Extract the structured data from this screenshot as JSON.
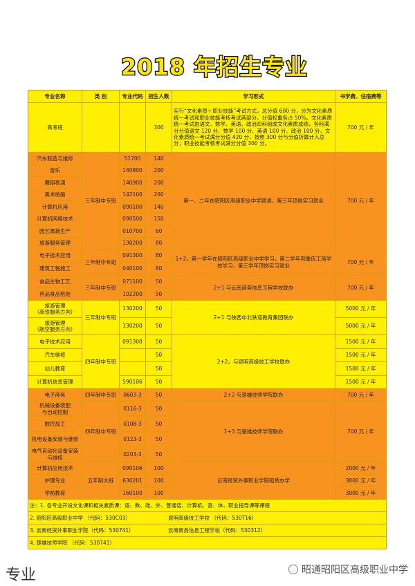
{
  "title": "2018 年招生专业",
  "table": {
    "header": [
      "专业名称",
      "类 别",
      "专业代码",
      "招生人数",
      "学习形式",
      "书学费、住宿费等"
    ],
    "groups": [
      {
        "form": "实行“文化素质＋职业技能”考试方式，总分值 600 分，分为文化素质统一考试和职业技能考核考试两部分，分值权重各占 50%。文化素质统一考试由语文、数学、英语、政治四科组成文化素质成绩，各科满分分值语文 120 分、数学 100 分、英语 100 分、政治 100 分，文化素质统一考试满分分值 420 分，按照 300 分与分值折算计入总分；职业技能考核考试满分分值 300 分。",
        "fee": "700 元 / 年",
        "rows": [
          {
            "name": "高考班",
            "count": 300
          }
        ]
      },
      {
        "category": "三年制中专班",
        "form": "第一、二年在昭阳区高级职业中学就读，第三年顶岗实习就业",
        "fee": "700 元 / 年",
        "rows": [
          {
            "name": "汽车制造与维修",
            "code": "51700",
            "count": 140
          },
          {
            "name": "音乐",
            "code": "140800",
            "count": 200
          },
          {
            "name": "舞蹈表演",
            "code": "140900",
            "count": 200
          },
          {
            "name": "美术绘画",
            "code": "142100",
            "count": 200
          },
          {
            "name": "计算机应用",
            "code": "090100",
            "count": 140
          },
          {
            "name": "计算机网络技术",
            "code": "090500",
            "count": 150
          },
          {
            "name": "园艺果蔬生产",
            "code": "010700",
            "count": 60
          },
          {
            "name": "旅游服务管理",
            "code": "130200",
            "count": 80
          }
        ]
      },
      {
        "category": "三年制中专班",
        "form": "1+2，第一学年在昭阳区高级职业中学学习，第二学年到重庆工商学校学习，第三学年顶岗实习就业",
        "fee": "700 元 / 年",
        "rows": [
          {
            "name": "电子技术应用",
            "code": "091300",
            "count": 80
          },
          {
            "name": "建筑工程施工",
            "code": "040100",
            "count": 80
          }
        ]
      },
      {
        "category": "三年制中专班",
        "form": "2+1 与云南商务信息工程学校联办",
        "fee": "700 元 / 年",
        "rows": [
          {
            "name": "食品生物工艺",
            "code": "071100",
            "count": 50
          },
          {
            "name": "药品食品检验",
            "code": "102200",
            "count": 50
          }
        ]
      },
      {
        "category": "三年制中专班",
        "form": "2+1 与陕西中北铁道教育集团联办",
        "rows": [
          {
            "name": "旅游管理\n（高铁服务方向）",
            "code": "130200",
            "count": 50,
            "fee": "5000 元 / 年"
          },
          {
            "name": "旅游管理\n（航空服务方向）",
            "code": "130200",
            "count": 50,
            "fee": "5000 元 / 年"
          }
        ]
      },
      {
        "category": "四年制中专班",
        "form": "2+2，与昆明高级技工学校联办",
        "rows": [
          {
            "name": "电子技术应用",
            "code": "091300",
            "count": 50,
            "fee": "1500 元 / 年"
          },
          {
            "name": "汽车维修",
            "count": 50,
            "fee": "1500 元 / 年"
          },
          {
            "name": "幼儿教育",
            "count": 50,
            "fee": "1500 元 / 年"
          },
          {
            "name": "计算机信息管理",
            "code": "590106",
            "count": 50,
            "fee": "1500 元 / 年"
          }
        ]
      },
      {
        "category": "四年制中专班",
        "form": "2+2 与楚雄技师学院联办",
        "fee": "700 元 / 年",
        "rows": [
          {
            "name": "电子商务",
            "code": "0603-3",
            "count": 50
          }
        ]
      },
      {
        "category": "四年制中专班",
        "form": "1+3 与楚雄技师学院联办",
        "fee": "700 元 / 年",
        "rows": [
          {
            "name": "机械设备装配\n与自动控制",
            "code": "0116-3",
            "count": 50
          },
          {
            "name": "数控加工",
            "code": "0108-3",
            "count": 50
          },
          {
            "name": "机电设备安装与维修",
            "code": "0123-3",
            "count": 50
          },
          {
            "name": "电气自动化设备安装\n与维修",
            "code": "0203-3",
            "count": 50
          }
        ]
      },
      {
        "category": "五年制大班",
        "form": "云南经贸外事职业学院租赁办学",
        "rows": [
          {
            "name": "计算机应用技术",
            "code": "090106",
            "count": 100,
            "fee": "2000 元 / 年"
          },
          {
            "name": "护理专业",
            "code": "630201",
            "count": 100,
            "fee": "3000 元 / 年"
          },
          {
            "name": "学前教育",
            "code": "160100",
            "count": 100,
            "fee": "3000 元 / 年"
          }
        ]
      }
    ],
    "notes": [
      [
        "注：1. 各专业开设文化课和相关素质课：语、数、政、外、普通话、计算机、音、体、职业指导课等课程"
      ],
      [
        "2. 昭阳区高级职业中学 （代码：530C03）",
        "昆明高级技工学校 （代码：530T16）"
      ],
      [
        "3. 云南经贸外事职业学院（代码：530741）",
        "云南商务信息工程学校（代码：530312）"
      ],
      [
        "4. 楚雄技师学院 （代码：530741）"
      ]
    ]
  },
  "footer": "专业",
  "watermark": "昭通昭阳区高级职业中学"
}
